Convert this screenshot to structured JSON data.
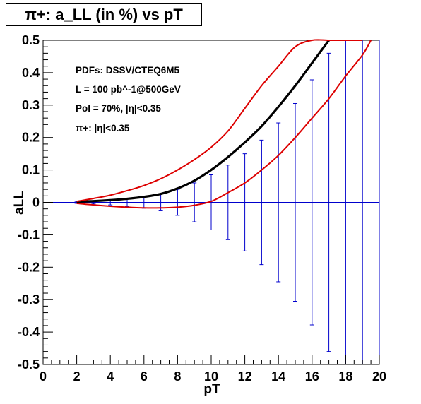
{
  "chart_data": {
    "type": "line",
    "title": "π+: a_LL (in %) vs pT",
    "xlabel": "pT",
    "ylabel": "aLL",
    "xlim": [
      0,
      20
    ],
    "ylim": [
      -0.5,
      0.5
    ],
    "x_ticks": [
      0,
      2,
      4,
      6,
      8,
      10,
      12,
      14,
      16,
      18,
      20
    ],
    "y_ticks": [
      -0.5,
      -0.4,
      -0.3,
      -0.2,
      -0.1,
      0,
      0.1,
      0.2,
      0.3,
      0.4,
      0.5
    ],
    "x_tick_labels": [
      "0",
      "2",
      "4",
      "6",
      "8",
      "10",
      "12",
      "14",
      "16",
      "18",
      "20"
    ],
    "y_tick_labels": [
      "-0.5",
      "-0.4",
      "-0.3",
      "-0.2",
      "-0.1",
      "0",
      "0.1",
      "0.2",
      "0.3",
      "0.4",
      "0.5"
    ],
    "annotations": [
      "PDFs: DSSV/CTEQ6M5",
      "L = 100 pb^-1@500GeV",
      "Pol = 70%, |η|<0.35",
      "π+: |η|<0.35"
    ],
    "colors": {
      "central": "#000000",
      "band": "#dd0000",
      "errors": "#0000cc"
    },
    "series": [
      {
        "x": [
          2,
          3,
          4,
          5,
          6,
          7,
          8,
          9,
          10,
          11,
          12,
          13,
          14,
          15,
          16,
          17
        ],
        "y": [
          0.002,
          0.004,
          0.007,
          0.011,
          0.017,
          0.026,
          0.043,
          0.067,
          0.1,
          0.14,
          0.185,
          0.235,
          0.295,
          0.36,
          0.43,
          0.5
        ]
      },
      {
        "x": [
          2,
          3,
          4,
          5,
          6,
          7,
          8,
          9,
          10,
          11,
          12,
          13,
          14,
          15,
          16,
          17,
          18,
          19
        ],
        "y": [
          0.003,
          0.012,
          0.022,
          0.036,
          0.052,
          0.073,
          0.1,
          0.132,
          0.17,
          0.22,
          0.29,
          0.36,
          0.42,
          0.48,
          0.5,
          0.5,
          0.5,
          0.5
        ]
      },
      {
        "x": [
          2,
          3,
          4,
          5,
          6,
          7,
          8,
          9,
          10,
          11,
          12,
          13,
          14,
          15,
          16,
          17,
          18,
          19,
          19.5
        ],
        "y": [
          -0.003,
          -0.008,
          -0.012,
          -0.015,
          -0.017,
          -0.017,
          -0.015,
          -0.009,
          0.003,
          0.03,
          0.06,
          0.1,
          0.145,
          0.2,
          0.26,
          0.32,
          0.39,
          0.455,
          0.5
        ]
      }
    ],
    "error_bars": {
      "x": [
        2,
        3,
        4,
        5,
        6,
        7,
        8,
        9,
        10,
        11,
        12,
        13,
        14,
        15,
        16,
        17,
        18,
        19,
        20
      ],
      "err": [
        0.003,
        0.005,
        0.008,
        0.012,
        0.018,
        0.026,
        0.04,
        0.06,
        0.085,
        0.115,
        0.15,
        0.192,
        0.245,
        0.305,
        0.378,
        0.46,
        0.56,
        0.67,
        0.8
      ]
    }
  }
}
